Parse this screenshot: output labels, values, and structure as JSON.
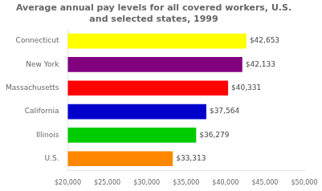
{
  "chart_data": {
    "type": "bar",
    "orientation": "horizontal",
    "title": "Average annual pay levels for all covered workers, U.S.\nand selected states, 1999",
    "categories": [
      "Connecticut",
      "New York",
      "Massachusetts",
      "California",
      "Illinois",
      "U.S."
    ],
    "values": [
      42653,
      42133,
      40331,
      37564,
      36279,
      33313
    ],
    "colors": [
      "#ffff00",
      "#800080",
      "#ff0000",
      "#0000cc",
      "#00cc00",
      "#ff8800"
    ],
    "data_labels": true,
    "value_labels": [
      "$42,653",
      "$42,133",
      "$40,331",
      "$37,564",
      "$36,279",
      "$33,313"
    ],
    "xlim": [
      20000,
      50000
    ],
    "xticks": [
      {
        "value": 20000,
        "label": "$20,000"
      },
      {
        "value": 25000,
        "label": "$25,000"
      },
      {
        "value": 30000,
        "label": "$30,000"
      },
      {
        "value": 35000,
        "label": "$35,000"
      },
      {
        "value": 40000,
        "label": "$40,000"
      },
      {
        "value": 45000,
        "label": "$45,000"
      },
      {
        "value": 50000,
        "label": "$50,000"
      }
    ],
    "grid": false
  }
}
